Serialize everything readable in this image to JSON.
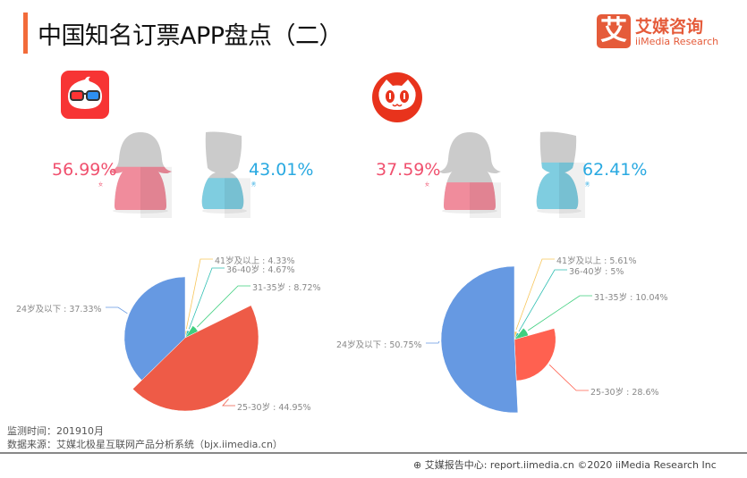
{
  "header": {
    "title": "中国知名订票APP盘点（二）",
    "logo_mark": "艾",
    "logo_cn": "艾媒咨询",
    "logo_en": "iiMedia Research"
  },
  "apps": [
    {
      "icon": "glasses-app-icon",
      "female_pct": "56.99%",
      "male_pct": "43.01%",
      "female_label": "女",
      "male_label": "男",
      "female_fill": 56.99,
      "male_fill": 43.01
    },
    {
      "icon": "cat-app-icon",
      "female_pct": "37.59%",
      "male_pct": "62.41%",
      "female_label": "女",
      "male_label": "男",
      "female_fill": 37.59,
      "male_fill": 62.41
    }
  ],
  "colors": {
    "female": "#f08c9c",
    "male": "#7fcde0",
    "female_text": "#f0506e",
    "male_text": "#29a9e1",
    "accent": "#f26b3a"
  },
  "chart_data": [
    {
      "type": "pie",
      "rose": "radius",
      "categories": [
        "41岁及以上",
        "36-40岁",
        "31-35岁",
        "25-30岁",
        "24岁及以下"
      ],
      "values": [
        4.33,
        4.67,
        8.72,
        44.95,
        37.33
      ],
      "labels": [
        "41岁及以上 : 4.33%",
        "36-40岁 : 4.67%",
        "31-35岁 : 8.72%",
        "25-30岁 : 44.95%",
        "24岁及以下 : 37.33%"
      ],
      "colors": [
        "#f7c65b",
        "#2fbfb3",
        "#3fcf7f",
        "#ee5b47",
        "#6699e2"
      ]
    },
    {
      "type": "pie",
      "rose": "radius",
      "categories": [
        "41岁及以上",
        "36-40岁",
        "31-35岁",
        "25-30岁",
        "24岁及以下"
      ],
      "values": [
        5.61,
        5,
        10.04,
        28.6,
        50.75
      ],
      "labels": [
        "41岁及以上 : 5.61%",
        "36-40岁 : 5%",
        "31-35岁 : 10.04%",
        "25-30岁 : 28.6%",
        "24岁及以下 : 50.75%"
      ],
      "colors": [
        "#f7c65b",
        "#2fbfb3",
        "#3fcf7f",
        "#ff6150",
        "#6699e2"
      ]
    }
  ],
  "footer": {
    "time": "监测时间：201910月",
    "source": "数据来源：艾媒北极星互联网产品分析系统（bjx.iimedia.cn）",
    "right": "艾媒报告中心: report.iimedia.cn  ©2020  iiMedia Research Inc"
  }
}
